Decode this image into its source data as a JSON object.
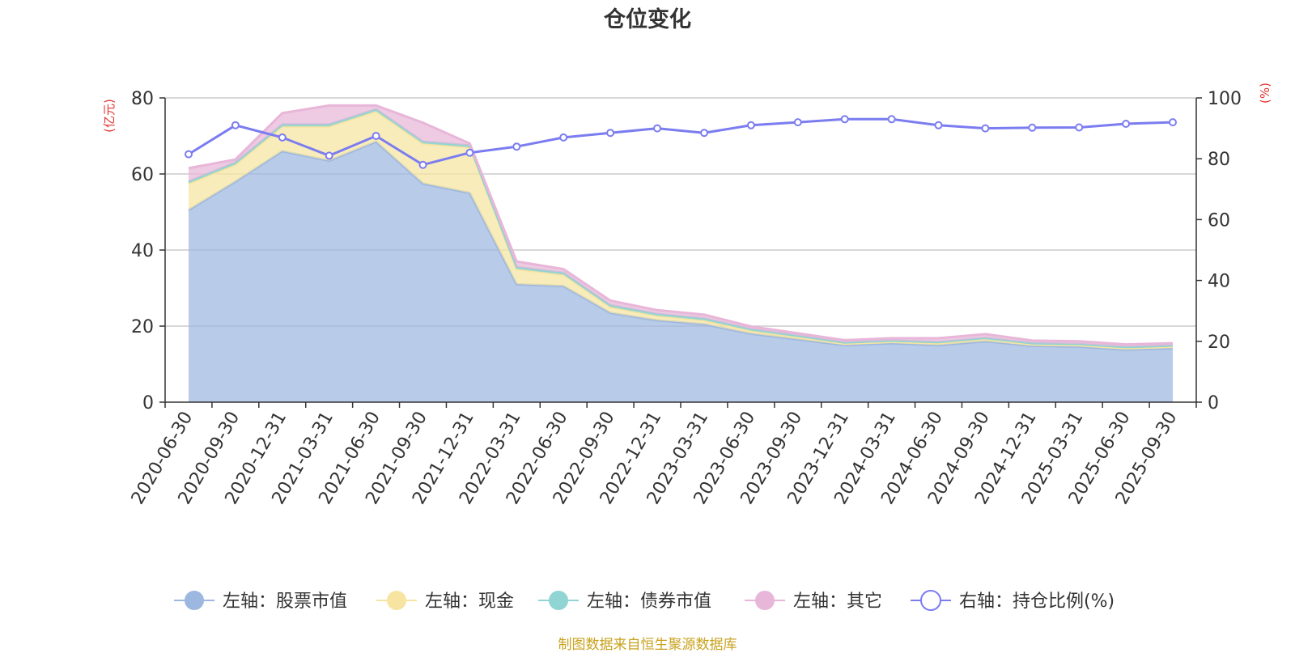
{
  "chart_data": {
    "type": "area",
    "title": "仓位变化",
    "left_axis": {
      "unit_label": "(亿元)",
      "ticks": [
        "0",
        "20",
        "40",
        "60",
        "80"
      ],
      "range": [
        0,
        80
      ]
    },
    "right_axis": {
      "unit_label": "(%)",
      "ticks": [
        "0",
        "20",
        "40",
        "60",
        "80",
        "100"
      ],
      "range": [
        0,
        100
      ]
    },
    "categories": [
      "2020-06-30",
      "2020-09-30",
      "2020-12-31",
      "2021-03-31",
      "2021-06-30",
      "2021-09-30",
      "2021-12-31",
      "2022-03-31",
      "2022-06-30",
      "2022-09-30",
      "2022-12-31",
      "2023-03-31",
      "2023-06-30",
      "2023-09-30",
      "2023-12-31",
      "2024-03-31",
      "2024-06-30",
      "2024-09-30",
      "2024-12-31",
      "2025-03-31",
      "2025-06-30",
      "2025-09-30"
    ],
    "series": [
      {
        "name": "左轴：股票市值",
        "axis": "left",
        "kind": "stacked-area",
        "color": "#9cb7e0",
        "values": [
          50.5,
          58.0,
          66.0,
          63.5,
          68.5,
          57.5,
          55.0,
          31.0,
          30.5,
          23.5,
          21.5,
          20.5,
          18.0,
          16.5,
          15.0,
          15.5,
          15.0,
          16.0,
          14.8,
          14.6,
          13.8,
          14.2
        ]
      },
      {
        "name": "左轴：现金",
        "axis": "left",
        "kind": "stacked-area",
        "color": "#f7e4a1",
        "values": [
          7.0,
          4.5,
          6.5,
          9.0,
          8.0,
          10.5,
          12.0,
          4.0,
          3.0,
          1.5,
          1.2,
          1.0,
          0.8,
          0.6,
          0.4,
          0.4,
          0.5,
          0.6,
          0.4,
          0.4,
          0.4,
          0.4
        ]
      },
      {
        "name": "左轴：债券市值",
        "axis": "left",
        "kind": "stacked-area",
        "color": "#90d4d3",
        "values": [
          0.5,
          0.5,
          0.5,
          0.5,
          0.5,
          0.5,
          0.5,
          0.5,
          0.5,
          0.5,
          0.5,
          0.5,
          0.4,
          0.4,
          0.3,
          0.3,
          0.3,
          0.3,
          0.3,
          0.3,
          0.3,
          0.3
        ]
      },
      {
        "name": "左轴：其它",
        "axis": "left",
        "kind": "stacked-area",
        "color": "#e8b6d8",
        "values": [
          3.5,
          0.8,
          3.0,
          5.0,
          1.0,
          5.0,
          0.5,
          1.5,
          1.0,
          1.2,
          1.0,
          1.0,
          0.7,
          0.6,
          0.6,
          0.6,
          1.0,
          1.0,
          0.7,
          0.7,
          0.7,
          0.6
        ]
      },
      {
        "name": "右轴：持仓比例(%)",
        "axis": "right",
        "kind": "line",
        "color": "#7b7cf0",
        "values": [
          81.5,
          91.0,
          87.0,
          81.0,
          87.5,
          78.0,
          82.0,
          84.0,
          87.0,
          88.5,
          90.0,
          88.5,
          91.0,
          92.0,
          93.0,
          93.0,
          91.0,
          90.0,
          90.2,
          90.3,
          91.5,
          92.0
        ]
      }
    ]
  },
  "source_note": "制图数据来自恒生聚源数据库",
  "colors": {
    "title": "#333333",
    "axis_unit": "#e53333",
    "axis": "#333333",
    "grid": "#cccccc",
    "source": "#c9a21f"
  }
}
